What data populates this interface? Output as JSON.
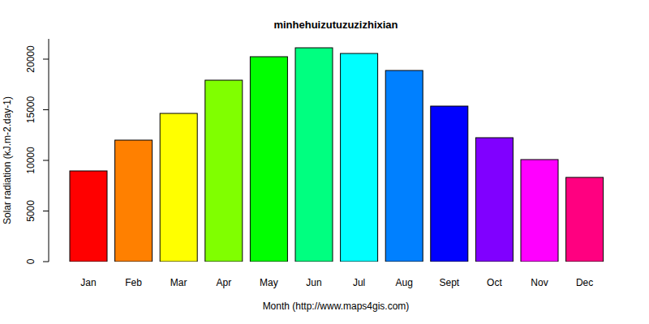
{
  "chart_data": {
    "type": "bar",
    "title": "minhehuizutuzuzizhixian",
    "x_label": "Month (http://www.maps4gis.com)",
    "y_label": "Solar radiation (kJ.m-2.day-1)",
    "categories": [
      "Jan",
      "Feb",
      "Mar",
      "Apr",
      "May",
      "Jun",
      "Jul",
      "Aug",
      "Sept",
      "Oct",
      "Nov",
      "Dec"
    ],
    "values": [
      8960,
      12000,
      14640,
      17920,
      20240,
      21120,
      20560,
      18880,
      15360,
      12240,
      10080,
      8320
    ],
    "colors": [
      "#ff0000",
      "#ff8000",
      "#ffff00",
      "#80ff00",
      "#00ff00",
      "#00ff80",
      "#00ffff",
      "#0080ff",
      "#0000ff",
      "#8000ff",
      "#ff00ff",
      "#ff0080"
    ],
    "ylim": [
      0,
      22000
    ],
    "yticks": [
      0,
      5000,
      10000,
      15000,
      20000
    ],
    "grid": false
  }
}
